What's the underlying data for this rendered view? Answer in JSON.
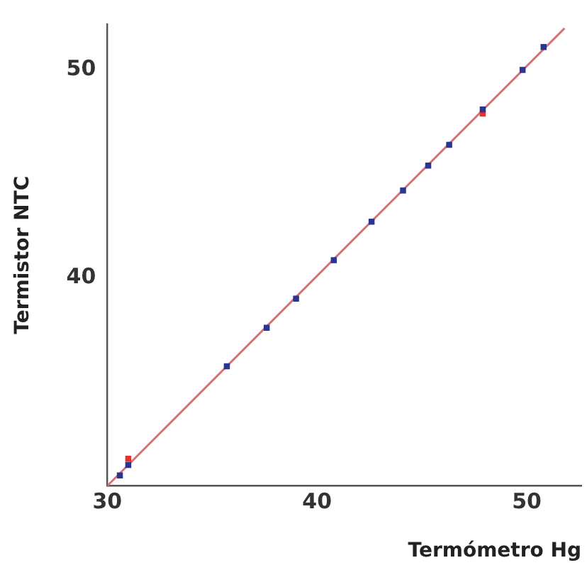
{
  "chart_data": {
    "type": "scatter",
    "xlabel": "Termómetro Hg",
    "ylabel": "Termistor NTC",
    "xlim": [
      30,
      52.6
    ],
    "ylim": [
      30,
      52.2
    ],
    "xticks": [
      30,
      40,
      50
    ],
    "yticks": [
      40,
      50
    ],
    "grid": false,
    "legend": false,
    "marker": "square",
    "series": [
      {
        "type": "line",
        "color": "#d9707a",
        "x": [
          30,
          51.8
        ],
        "values": [
          30,
          52.0
        ],
        "marker": "none"
      },
      {
        "color": "#e8302a",
        "x": [
          31.0,
          47.9
        ],
        "values": [
          31.3,
          47.9
        ]
      },
      {
        "color": "#2a3590",
        "x": [
          30.6,
          31.0,
          35.7,
          37.6,
          39.0,
          40.8,
          42.6,
          44.1,
          45.3,
          46.3,
          47.9,
          49.8,
          50.8
        ],
        "values": [
          30.5,
          31.0,
          35.75,
          37.6,
          39.0,
          40.85,
          42.7,
          44.2,
          45.4,
          46.4,
          48.1,
          50.0,
          51.1
        ]
      }
    ]
  }
}
